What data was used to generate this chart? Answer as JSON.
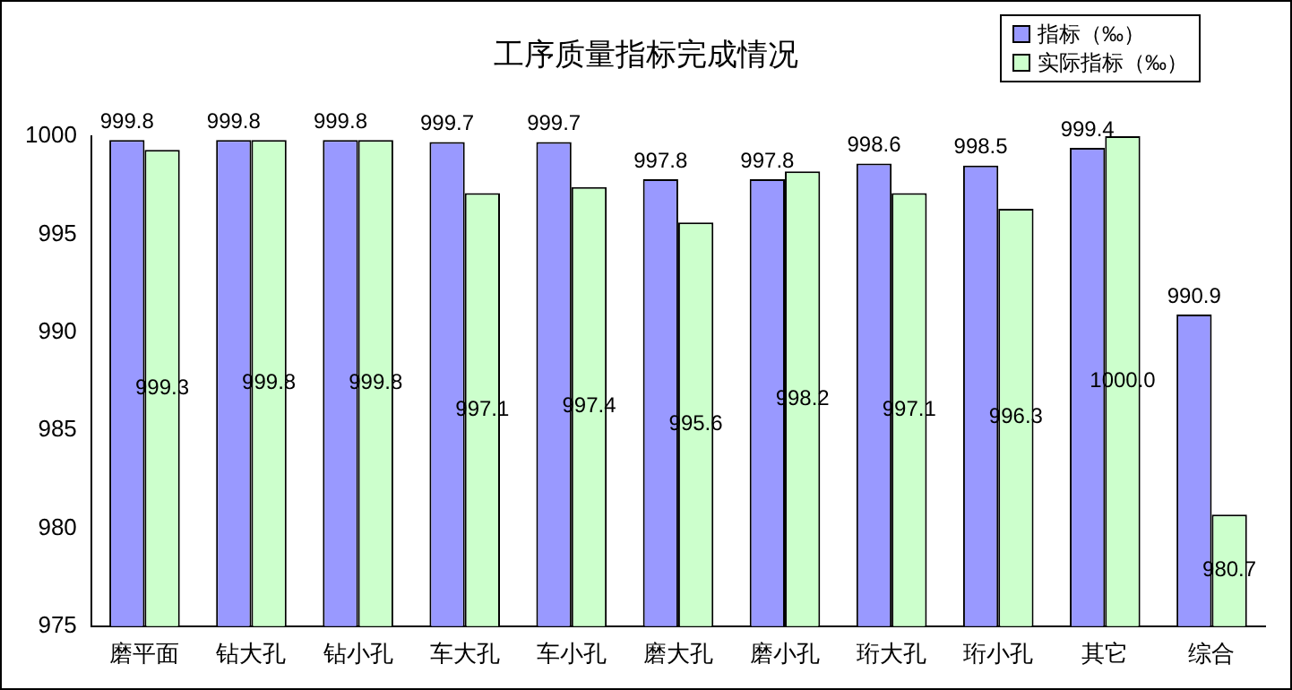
{
  "chart_data": {
    "type": "bar",
    "title": "工序质量指标完成情况",
    "categories": [
      "磨平面",
      "钻大孔",
      "钻小孔",
      "车大孔",
      "车小孔",
      "磨大孔",
      "磨小孔",
      "珩大孔",
      "珩小孔",
      "其它",
      "综合"
    ],
    "series": [
      {
        "name": "指标（‰）",
        "color": "#9999ff",
        "values": [
          999.8,
          999.8,
          999.8,
          999.7,
          999.7,
          997.8,
          997.8,
          998.6,
          998.5,
          999.4,
          990.9
        ],
        "value_labels": [
          "999.8",
          "999.8",
          "999.8",
          "999.7",
          "999.7",
          "997.8",
          "997.8",
          "998.6",
          "998.5",
          "999.4",
          "990.9"
        ]
      },
      {
        "name": "实际指标（‰）",
        "color": "#ccffcc",
        "values": [
          999.3,
          999.8,
          999.8,
          997.1,
          997.4,
          995.6,
          998.2,
          997.1,
          996.3,
          1000.0,
          980.7
        ],
        "value_labels": [
          "999.3",
          "999.8",
          "999.8",
          "997.1",
          "997.4",
          "995.6",
          "998.2",
          "997.1",
          "996.3",
          "1000.0",
          "980.7"
        ]
      }
    ],
    "ylim": [
      975,
      1000
    ],
    "yticks": [
      975,
      980,
      985,
      990,
      995,
      1000
    ],
    "grid": false,
    "legend": "top right"
  }
}
